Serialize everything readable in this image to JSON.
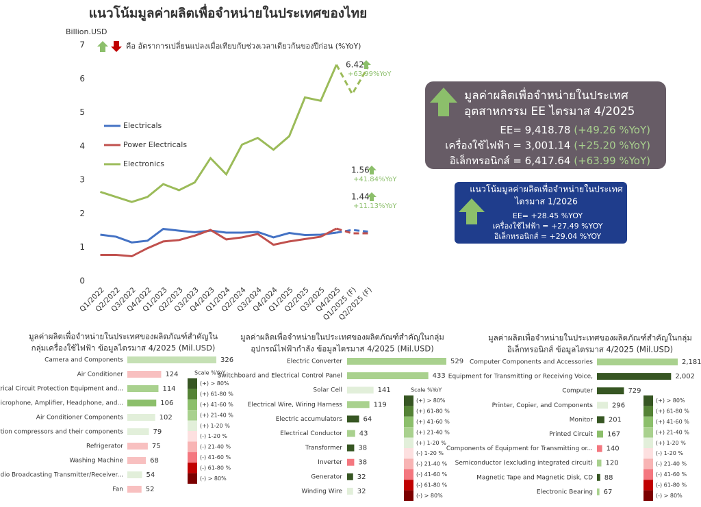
{
  "chart_data": [
    {
      "type": "line",
      "title": "แนวโน้มมูลค่าผลิตเพื่อจำหน่ายในประเทศของไทย",
      "y_label": "Billion.USD",
      "yoy_note": "คือ อัตราการเปลี่ยนแปลงเมื่อเทียบกับช่วงเวลาเดียวกันของปีก่อน (%YoY)",
      "categories": [
        "Q1/2022",
        "Q2/2022",
        "Q3/2022",
        "Q4/2022",
        "Q1/2023",
        "Q2/2023",
        "Q3/2023",
        "Q4/2023",
        "Q1/2024",
        "Q2/2024",
        "Q3/2024",
        "Q4/2024",
        "Q1/2025",
        "Q2/2025",
        "Q3/2025",
        "Q4/2025",
        "Q1/2025 (F)",
        "Q2/2025 (F)"
      ],
      "series": [
        {
          "name": "Electricals",
          "color": "#4472c4",
          "values": [
            1.38,
            1.32,
            1.15,
            1.2,
            1.55,
            1.5,
            1.45,
            1.5,
            1.44,
            1.44,
            1.46,
            1.3,
            1.43,
            1.37,
            1.38,
            1.44,
            1.52,
            1.47
          ]
        },
        {
          "name": "Power Electricals",
          "color": "#c0504d",
          "values": [
            0.78,
            0.78,
            0.74,
            0.98,
            1.18,
            1.22,
            1.35,
            1.52,
            1.24,
            1.3,
            1.4,
            1.08,
            1.18,
            1.25,
            1.32,
            1.56,
            1.42,
            1.42
          ]
        },
        {
          "name": "Electronics",
          "color": "#9bbb59",
          "values": [
            2.65,
            2.5,
            2.35,
            2.5,
            2.88,
            2.7,
            2.93,
            3.65,
            3.17,
            4.05,
            4.25,
            3.9,
            4.3,
            5.45,
            5.35,
            6.42,
            5.55,
            6.35
          ]
        }
      ],
      "dashed_from": 15,
      "ylim": [
        0,
        7
      ],
      "yticks": [
        0,
        1,
        2,
        3,
        4,
        5,
        6,
        7
      ],
      "grid": false,
      "legend": "left",
      "annotations": [
        {
          "text": "6.42",
          "yoy": "+63.99%YoY"
        },
        {
          "text": "1.56",
          "yoy": "+41.84%YoY"
        },
        {
          "text": "1.44",
          "yoy": "+11.13%YoY"
        }
      ]
    },
    {
      "type": "bar",
      "orientation": "horizontal",
      "title": [
        "มูลค่าผลิตเพื่อจำหน่ายในประเทศของผลิตภัณฑ์สำคัญใน",
        "กลุ่มเครื่องใช้ไฟฟ้า ข้อมูลไตรมาส 4/2025 (Mil.USD)"
      ],
      "categories": [
        "Camera and Components",
        "Air Conditioner",
        "Electrical Circuit Protection Equipment and...",
        "Speaker, Microphone, Amplifier, Headphone, and...",
        "Air Conditioner Components",
        "Refrigeration compressors and their components",
        "Refrigerator",
        "Washing Machine",
        "Radio Broadcasting Transmitter/Receiver...",
        "Fan"
      ],
      "values": [
        326,
        124,
        114,
        106,
        102,
        79,
        75,
        68,
        54,
        52
      ],
      "colors": [
        "#c5e0b4",
        "#f8c0c0",
        "#a9d18e",
        "#8cbf6b",
        "#e2efda",
        "#e2efda",
        "#f8c0c0",
        "#f8c0c0",
        "#e2efda",
        "#f8c0c0"
      ],
      "scale": {
        "title": "Scale %YoY",
        "items": [
          {
            "label": "(+) > 80%",
            "color": "#375623"
          },
          {
            "label": "(+) 61-80 %",
            "color": "#548235"
          },
          {
            "label": "(+) 41-60 %",
            "color": "#8cbf6b"
          },
          {
            "label": "(+) 21-40 %",
            "color": "#a9d18e"
          },
          {
            "label": "(+) 1-20 %",
            "color": "#e2efda"
          },
          {
            "label": "(-) 1-20 %",
            "color": "#fde0e0"
          },
          {
            "label": "(-) 21-40 %",
            "color": "#f8b4b4"
          },
          {
            "label": "(-) 41-60 %",
            "color": "#f4777f"
          },
          {
            "label": "(-) 61-80 %",
            "color": "#c00000"
          },
          {
            "label": "(-) > 80%",
            "color": "#7b0000"
          }
        ]
      }
    },
    {
      "type": "bar",
      "orientation": "horizontal",
      "title": [
        "มูลค่าผลิตเพื่อจำหน่ายในประเทศของผลิตภัณฑ์สำคัญในกลุ่ม",
        "อุปกรณ์ไฟฟ้ากำลัง ข้อมูลไตรมาส 4/2025 (Mil.USD)"
      ],
      "categories": [
        "Electric Converter",
        "Switchboard and Electrical Control Panel",
        "Solar Cell",
        "Electrical Wire, Wiring Harness",
        "Electric accumulators",
        "Electrical Conductor",
        "Transformer",
        "Inverter",
        "Generator",
        "Winding Wire"
      ],
      "values": [
        529,
        433,
        141,
        119,
        64,
        43,
        38,
        38,
        32,
        32
      ],
      "colors": [
        "#a9d18e",
        "#a9d18e",
        "#e2efda",
        "#a9d18e",
        "#375623",
        "#a9d18e",
        "#375623",
        "#f4777f",
        "#375623",
        "#e2efda"
      ],
      "scale": {
        "title": "Scale %YoY",
        "items": [
          {
            "label": "(+) > 80%",
            "color": "#375623"
          },
          {
            "label": "(+) 61-80 %",
            "color": "#548235"
          },
          {
            "label": "(+) 41-60 %",
            "color": "#8cbf6b"
          },
          {
            "label": "(+) 21-40 %",
            "color": "#a9d18e"
          },
          {
            "label": "(+) 1-20 %",
            "color": "#e2efda"
          },
          {
            "label": "(-) 1-20 %",
            "color": "#fde0e0"
          },
          {
            "label": "(-) 21-40 %",
            "color": "#f8b4b4"
          },
          {
            "label": "(-) 41-60 %",
            "color": "#f4777f"
          },
          {
            "label": "(-) 61-80 %",
            "color": "#c00000"
          },
          {
            "label": "(-) > 80%",
            "color": "#7b0000"
          }
        ]
      }
    },
    {
      "type": "bar",
      "orientation": "horizontal",
      "title": [
        "มูลค่าผลิตเพื่อจำหน่ายในประเทศของผลิตภัณฑ์สำคัญในกลุ่ม",
        "อิเล็กทรอนิกส์ ข้อมูลไตรมาส 4/2025 (Mil.USD)"
      ],
      "categories": [
        "Computer Components and Accessories",
        "Equipment for Transmitting or Receiving Voice,",
        "Computer",
        "Printer, Copier, and Components",
        "Monitor",
        "Printed Circuit",
        "Components of Equipment for Transmitting or...",
        "Semiconductor (excluding integrated circuit)",
        "Magnetic Tape and Magnetic Disk, CD",
        "Electronic Bearing"
      ],
      "values": [
        2181,
        2002,
        729,
        296,
        201,
        167,
        140,
        120,
        88,
        67
      ],
      "value_labels": [
        "2,181",
        "2,002",
        "729",
        "296",
        "201",
        "167",
        "140",
        "120",
        "88",
        "67"
      ],
      "colors": [
        "#a9d18e",
        "#375623",
        "#375623",
        "#e2efda",
        "#375623",
        "#8cbf6b",
        "#f4777f",
        "#a9d18e",
        "#375623",
        "#a9d18e"
      ],
      "scale": {
        "items": [
          {
            "label": "(+) > 80%",
            "color": "#375623"
          },
          {
            "label": "(+) 61-80 %",
            "color": "#548235"
          },
          {
            "label": "(+) 41-60 %",
            "color": "#8cbf6b"
          },
          {
            "label": "(+) 21-40 %",
            "color": "#a9d18e"
          },
          {
            "label": "(+) 1-20 %",
            "color": "#e2efda"
          },
          {
            "label": "(-) 1-20 %",
            "color": "#fde0e0"
          },
          {
            "label": "(-) 21-40 %",
            "color": "#f8b4b4"
          },
          {
            "label": "(-) 41-60 %",
            "color": "#f4777f"
          },
          {
            "label": "(-) 61-80 %",
            "color": "#c00000"
          },
          {
            "label": "(-) > 80%",
            "color": "#7b0000"
          }
        ]
      }
    }
  ],
  "summary_q4": {
    "title_lines": [
      "มูลค่าผลิตเพื่อจำหน่ายในประเทศ",
      "อุตสาหกรรม EE ไตรมาส 4/2025"
    ],
    "rows": [
      {
        "label": "EE= 9,418.78",
        "yoy": "(+49.26 %YoY)"
      },
      {
        "label": "เครื่องใช้ไฟฟ้า = 3,001.14",
        "yoy": "(+25.20 %YoY)"
      },
      {
        "label": "อิเล็กทรอนิกส์ = 6,417.64",
        "yoy": "(+63.99 %YoY)"
      }
    ]
  },
  "outlook_q1": {
    "title_lines": [
      "แนวโน้มมูลค่าผลิตเพื่อจำหน่ายในประเทศ",
      "ไตรมาส 1/2026"
    ],
    "rows": [
      "EE= +28.45 %YOY",
      "เครื่องใช้ไฟฟ้า = +27.49 %YOY",
      "อิเล็กทรอนิกส์ = +29.04 %YOY"
    ]
  }
}
